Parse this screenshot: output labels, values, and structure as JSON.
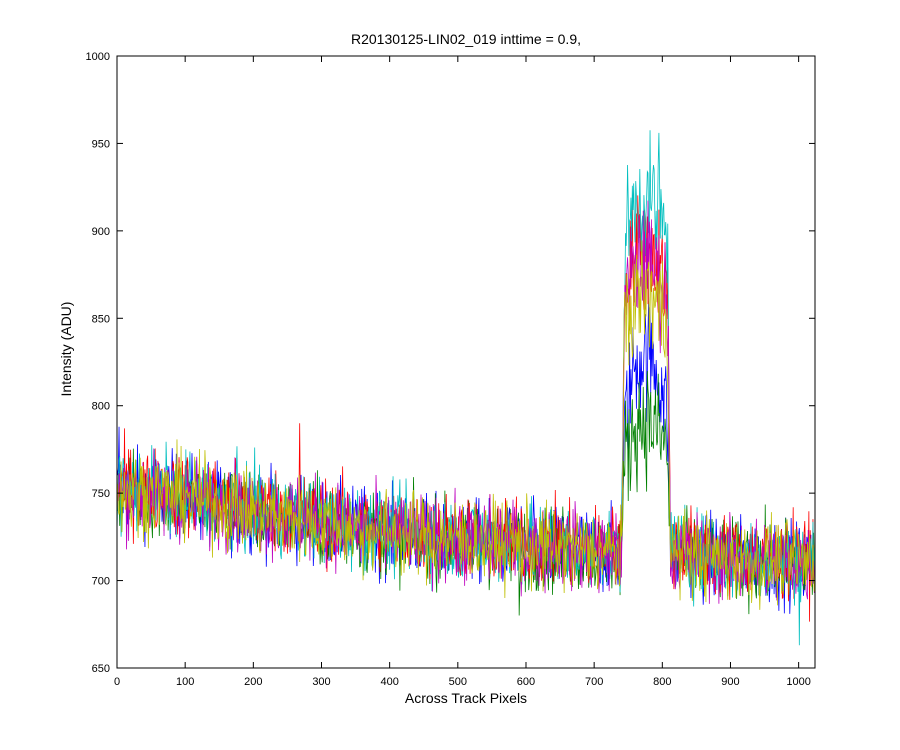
{
  "chart_data": {
    "type": "line",
    "title": "R20130125-LIN02_019 inttime = 0.9,",
    "xlabel": "Across Track Pixels",
    "ylabel": "Intensity (ADU)",
    "xlim": [
      0,
      1024
    ],
    "ylim": [
      650,
      1000
    ],
    "xticks": [
      0,
      100,
      200,
      300,
      400,
      500,
      600,
      700,
      800,
      900,
      1000
    ],
    "yticks": [
      650,
      700,
      750,
      800,
      850,
      900,
      950,
      1000
    ],
    "grid": false,
    "legend": "none",
    "series_colors": [
      "#0000ff",
      "#008000",
      "#ff0000",
      "#00bfbf",
      "#bf00bf",
      "#bfbf00"
    ],
    "series": [
      {
        "color": "#0000ff",
        "x": [
          0,
          100,
          200,
          300,
          400,
          500,
          600,
          700,
          740,
          745,
          760,
          780,
          800,
          808,
          812,
          900,
          1024
        ],
        "values": [
          752,
          748,
          740,
          733,
          727,
          723,
          720,
          717,
          716,
          790,
          825,
          830,
          812,
          790,
          716,
          712,
          710
        ],
        "noise": 12,
        "outlier_x": [
          3
        ],
        "outlier_values": [
          788
        ]
      },
      {
        "color": "#008000",
        "x": [
          0,
          100,
          200,
          300,
          400,
          500,
          600,
          700,
          740,
          745,
          760,
          780,
          800,
          808,
          812,
          900,
          1024
        ],
        "values": [
          750,
          746,
          739,
          732,
          726,
          722,
          719,
          716,
          715,
          770,
          790,
          792,
          782,
          770,
          715,
          711,
          709
        ],
        "noise": 12,
        "outlier_x": [
          590
        ],
        "outlier_values": [
          680
        ]
      },
      {
        "color": "#ff0000",
        "x": [
          0,
          100,
          200,
          300,
          400,
          500,
          600,
          700,
          740,
          745,
          760,
          780,
          800,
          808,
          812,
          900,
          1024
        ],
        "values": [
          754,
          750,
          742,
          735,
          729,
          725,
          722,
          719,
          718,
          870,
          890,
          888,
          880,
          865,
          718,
          714,
          712
        ],
        "noise": 12,
        "outlier_x": [
          268
        ],
        "outlier_values": [
          790
        ]
      },
      {
        "color": "#00bfbf",
        "x": [
          0,
          100,
          200,
          300,
          400,
          500,
          600,
          700,
          740,
          745,
          760,
          780,
          800,
          808,
          812,
          900,
          1024
        ],
        "values": [
          753,
          749,
          741,
          734,
          728,
          724,
          721,
          718,
          717,
          895,
          915,
          918,
          905,
          885,
          717,
          713,
          711
        ],
        "noise": 12,
        "outlier_x": [
          795,
          1001
        ],
        "outlier_values": [
          956,
          663
        ]
      },
      {
        "color": "#bf00bf",
        "x": [
          0,
          100,
          200,
          300,
          400,
          500,
          600,
          700,
          740,
          745,
          760,
          780,
          800,
          808,
          812,
          900,
          1024
        ],
        "values": [
          751,
          747,
          740,
          733,
          727,
          723,
          720,
          717,
          716,
          860,
          880,
          882,
          872,
          858,
          716,
          712,
          710
        ],
        "noise": 12,
        "outlier_x": [],
        "outlier_values": []
      },
      {
        "color": "#bfbf00",
        "x": [
          0,
          100,
          200,
          300,
          400,
          500,
          600,
          700,
          740,
          745,
          760,
          780,
          800,
          808,
          812,
          900,
          1024
        ],
        "values": [
          752,
          748,
          740,
          733,
          727,
          723,
          720,
          717,
          716,
          845,
          862,
          865,
          855,
          840,
          716,
          712,
          710
        ],
        "noise": 12,
        "outlier_x": [],
        "outlier_values": []
      }
    ]
  }
}
